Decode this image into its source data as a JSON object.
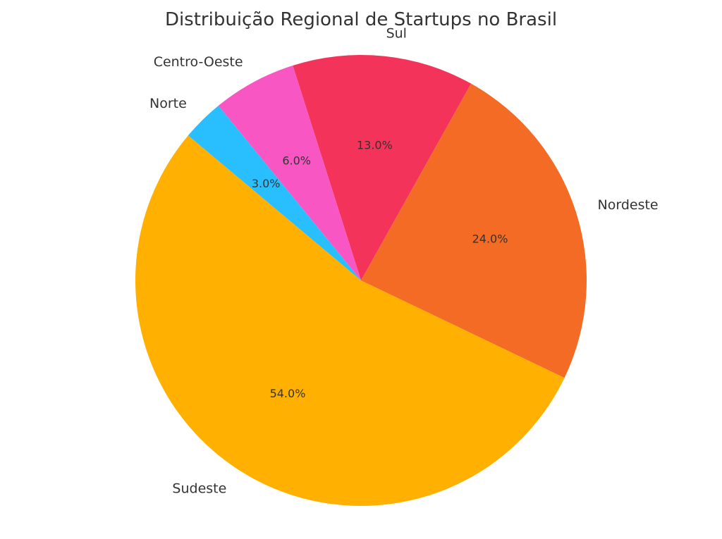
{
  "chart_data": {
    "type": "pie",
    "title": "Distribuição Regional de Startups no Brasil",
    "start_angle_deg": 140,
    "direction": "counterclockwise",
    "labels_outside": true,
    "legend": "none",
    "slices": [
      {
        "label": "Sudeste",
        "value": 54.0,
        "pct_text": "54.0%",
        "color": "#FFB000"
      },
      {
        "label": "Nordeste",
        "value": 24.0,
        "pct_text": "24.0%",
        "color": "#F36B24"
      },
      {
        "label": "Sul",
        "value": 13.0,
        "pct_text": "13.0%",
        "color": "#F4335A"
      },
      {
        "label": "Centro-Oeste",
        "value": 6.0,
        "pct_text": "6.0%",
        "color": "#F857C3"
      },
      {
        "label": "Norte",
        "value": 3.0,
        "pct_text": "3.0%",
        "color": "#29BFFF"
      }
    ]
  }
}
